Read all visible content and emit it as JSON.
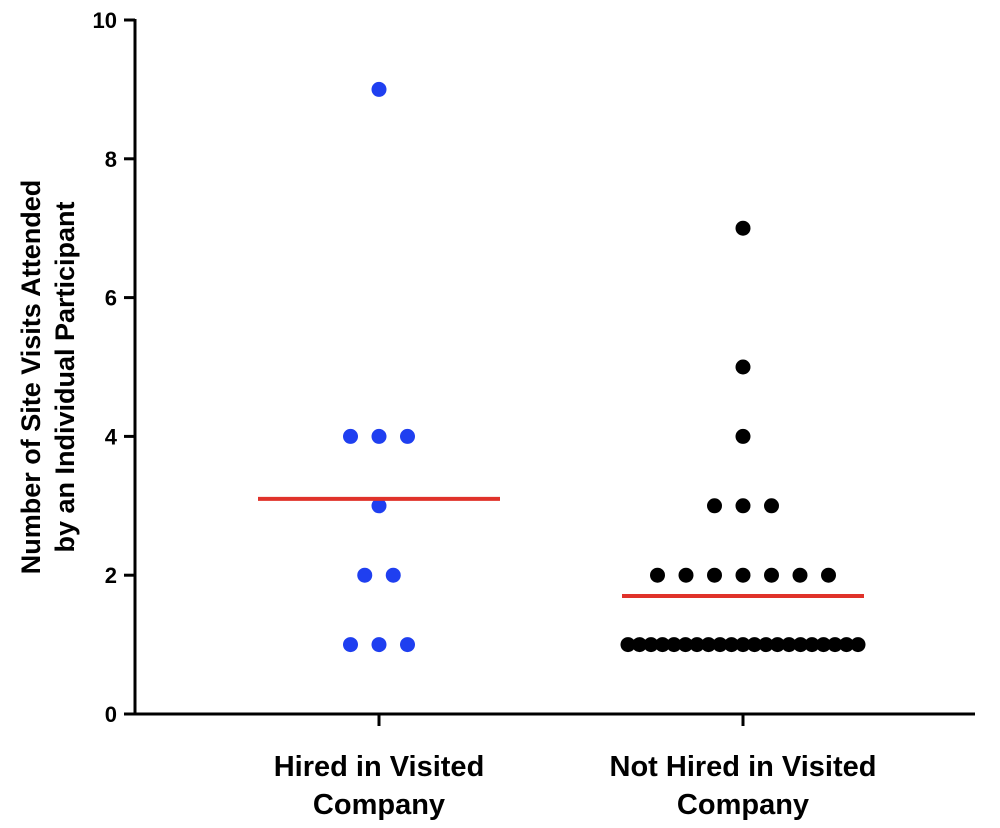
{
  "chart_data": {
    "type": "scatter",
    "title": "",
    "ylabel": [
      "Number of Site Visits Attended",
      "by an Individual Participant"
    ],
    "xlabel": "",
    "ylim": [
      0,
      10
    ],
    "yticks": [
      "0",
      "2",
      "4",
      "6",
      "8",
      "10"
    ],
    "grid": false,
    "categories": [
      [
        "Hired in Visited",
        "Company"
      ],
      [
        "Not Hired in Visited",
        "Company"
      ]
    ],
    "series": [
      {
        "category_index": 0,
        "color": "#1f3ff0",
        "values": [
          9,
          4,
          4,
          4,
          3,
          2,
          2,
          1,
          1,
          1
        ],
        "mean": 3.1,
        "mean_color": "#e0322a"
      },
      {
        "category_index": 1,
        "color": "#000000",
        "values": [
          7,
          5,
          4,
          3,
          3,
          3,
          2,
          2,
          2,
          2,
          2,
          2,
          2,
          1,
          1,
          1,
          1,
          1,
          1,
          1,
          1,
          1,
          1,
          1,
          1,
          1,
          1,
          1,
          1,
          1,
          1,
          1,
          1,
          1
        ],
        "mean": 1.7,
        "mean_color": "#e0322a"
      }
    ]
  }
}
